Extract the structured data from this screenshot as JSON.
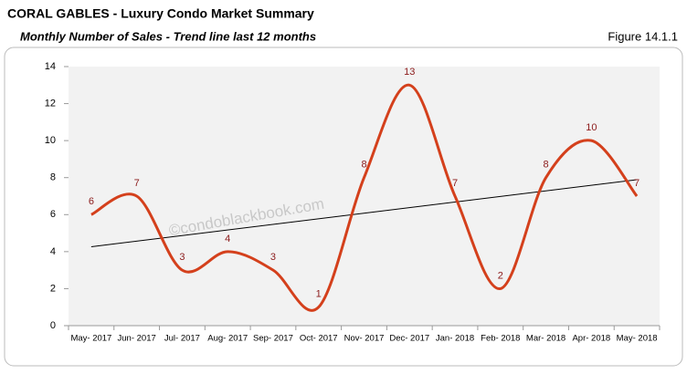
{
  "header": {
    "title": "CORAL GABLES - Luxury Condo Market Summary",
    "subtitle": "Monthly Number of Sales - Trend line last 12 months",
    "figure": "Figure 14.1.1"
  },
  "chart_data": {
    "type": "line",
    "categories": [
      "May- 2017",
      "Jun- 2017",
      "Jul- 2017",
      "Aug- 2017",
      "Sep- 2017",
      "Oct- 2017",
      "Nov- 2017",
      "Dec- 2017",
      "Jan- 2018",
      "Feb- 2018",
      "Mar- 2018",
      "Apr- 2018",
      "May- 2018"
    ],
    "values": [
      6,
      7,
      3,
      4,
      3,
      1,
      8,
      13,
      7,
      2,
      8,
      10,
      7
    ],
    "color": "#d4401c",
    "label_color": "#8b1a1a",
    "ylim": [
      0,
      14
    ],
    "yticks": [
      0,
      2,
      4,
      6,
      8,
      10,
      12,
      14
    ],
    "smooth": true,
    "trendline": true,
    "trendline_color": "#000000",
    "watermark": "©condoblackbook.com"
  }
}
